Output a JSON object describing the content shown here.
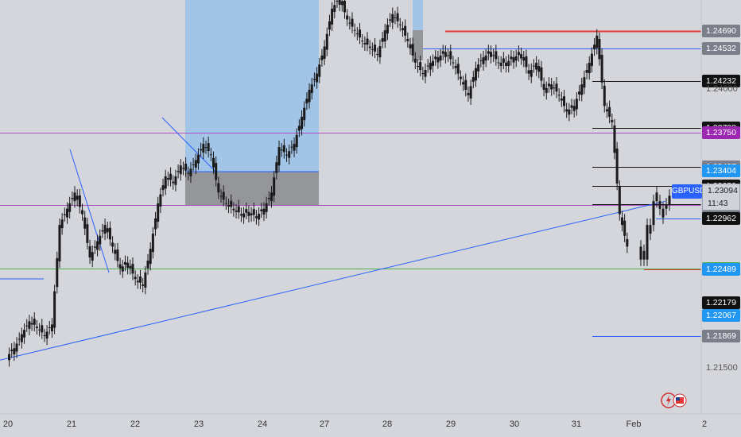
{
  "chart_data": {
    "type": "candlestick",
    "symbol": "GBPUSD",
    "current_price": "1.23094",
    "countdown": "11:43",
    "x_ticks": [
      "20",
      "21",
      "22",
      "23",
      "24",
      "27",
      "28",
      "29",
      "30",
      "31",
      "Feb",
      "2"
    ],
    "y_ticks": [
      "1.24000",
      "1.21500"
    ],
    "ylim": [
      1.2116,
      1.2498
    ],
    "price_labels": [
      {
        "value": "1.24690",
        "color": "#7a7f8a"
      },
      {
        "value": "1.24532",
        "color": "#7a7f8a"
      },
      {
        "value": "1.24232",
        "color": "#111111"
      },
      {
        "value": "1.23798",
        "color": "#111111"
      },
      {
        "value": "1.23750",
        "color": "#9c27b0"
      },
      {
        "value": "1.23437",
        "color": "#7a7f8a"
      },
      {
        "value": "1.23404",
        "color": "#2196f3"
      },
      {
        "value": "1.23261",
        "color": "#7a7f8a"
      },
      {
        "value": "1.23259",
        "color": "#111111"
      },
      {
        "value": "1.23083",
        "color": "#9c27b0"
      },
      {
        "value": "1.22977",
        "color": "#7a7f8a"
      },
      {
        "value": "1.22962",
        "color": "#111111"
      },
      {
        "value": "1.22500",
        "color": "#4caf50"
      },
      {
        "value": "1.22489",
        "color": "#2196f3"
      },
      {
        "value": "1.22179",
        "color": "#111111"
      },
      {
        "value": "1.22067",
        "color": "#2196f3"
      },
      {
        "value": "1.21869",
        "color": "#7a7f8a"
      }
    ],
    "horizontal_levels": [
      {
        "price": 1.2375,
        "color": "#b04fc4",
        "x_start": 0
      },
      {
        "price": 1.23083,
        "color": "#b04fc4",
        "x_start": 0
      },
      {
        "price": 1.225,
        "color": "#4caf50",
        "x_start": 0
      },
      {
        "price": 1.2469,
        "color": "#e53935",
        "x_start": 560
      },
      {
        "price": 1.24532,
        "color": "#2962ff",
        "x_start": 532
      },
      {
        "price": 1.24232,
        "color": "#111111",
        "x_start": 745
      },
      {
        "price": 1.23798,
        "color": "#111111",
        "x_start": 745
      },
      {
        "price": 1.23437,
        "color": "#111111",
        "x_start": 745
      },
      {
        "price": 1.23259,
        "color": "#111111",
        "x_start": 745
      },
      {
        "price": 1.23094,
        "color": "#111111",
        "x_start": 745
      },
      {
        "price": 1.22962,
        "color": "#2962ff",
        "x_start": 825
      },
      {
        "price": 1.22489,
        "color": "#e53935",
        "x_start": 810
      },
      {
        "price": 1.21869,
        "color": "#2962ff",
        "x_start": 745
      }
    ],
    "trendline": {
      "from": {
        "x": "20",
        "price": 1.2165
      },
      "to": {
        "x": "Feb",
        "price": 1.2312
      },
      "color": "#2962ff"
    },
    "candles_close_path": [
      1.2168,
      1.2176,
      1.2189,
      1.2201,
      1.2196,
      1.2188,
      1.2198,
      1.229,
      1.2305,
      1.232,
      1.23,
      1.226,
      1.2275,
      1.229,
      1.227,
      1.225,
      1.2255,
      1.224,
      1.2235,
      1.2268,
      1.231,
      1.2335,
      1.233,
      1.2345,
      1.2338,
      1.235,
      1.2365,
      1.2355,
      1.232,
      1.231,
      1.2305,
      1.23,
      1.2302,
      1.2298,
      1.2305,
      1.232,
      1.2362,
      1.2355,
      1.2365,
      1.239,
      1.2415,
      1.243,
      1.2455,
      1.249,
      1.25,
      1.248,
      1.247,
      1.246,
      1.2455,
      1.2448,
      1.247,
      1.2485,
      1.2475,
      1.246,
      1.244,
      1.243,
      1.244,
      1.2445,
      1.245,
      1.244,
      1.2425,
      1.241,
      1.2435,
      1.2445,
      1.245,
      1.244,
      1.244,
      1.2445,
      1.2448,
      1.243,
      1.244,
      1.2415,
      1.242,
      1.241,
      1.2395,
      1.24,
      1.242,
      1.244,
      1.2465,
      1.24,
      1.2385,
      1.23,
      1.227,
      1.2258,
      1.229,
      1.2312,
      1.2305,
      1.2309
    ]
  }
}
